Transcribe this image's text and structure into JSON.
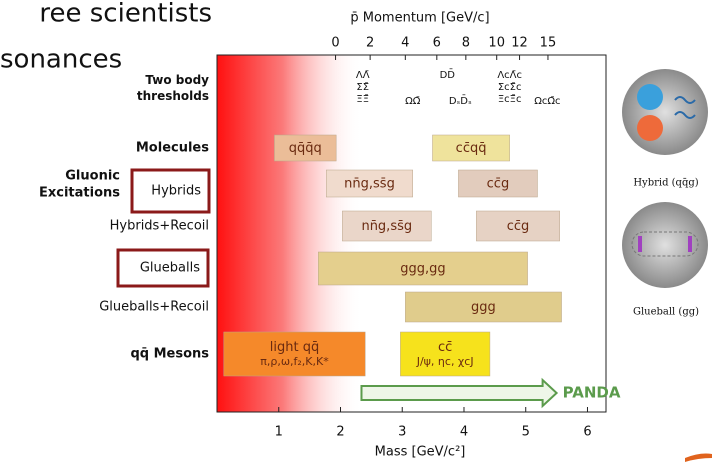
{
  "slide": {
    "heading_top": "ree scientists",
    "heading": "sonances",
    "images": [
      {
        "caption": "Hybrid (qq̄g)"
      },
      {
        "caption": "Glueball (gg)"
      }
    ]
  },
  "chart_data": {
    "type": "range",
    "x_label": "Mass [GeV/c²]",
    "x2_label": "p̄ Momentum [GeV/c]",
    "xlim": [
      0,
      6.3
    ],
    "xticks": [
      1,
      2,
      3,
      4,
      5,
      6
    ],
    "x2ticks": [
      {
        "value": 1.92,
        "label": "0"
      },
      {
        "value": 2.48,
        "label": "2"
      },
      {
        "value": 3.05,
        "label": "4"
      },
      {
        "value": 3.56,
        "label": "6"
      },
      {
        "value": 4.03,
        "label": "8"
      },
      {
        "value": 4.53,
        "label": "10"
      },
      {
        "value": 4.9,
        "label": "12"
      },
      {
        "value": 5.36,
        "label": "15"
      }
    ],
    "thresholds": {
      "label": "Two body thresholds",
      "items": [
        {
          "lines": [
            "ΛΛ̄",
            "ΣΣ̄",
            "ΞΞ̄"
          ],
          "mass": 2.36
        },
        {
          "lines": [
            "ΩΩ̄"
          ],
          "mass": 3.17
        },
        {
          "lines": [
            "DD̄"
          ],
          "mass": 3.73
        },
        {
          "lines": [
            "DₛD̄ₛ"
          ],
          "mass": 3.94
        },
        {
          "lines": [
            "ΛcΛ̄c",
            "ΣcΣ̄c",
            "ΞcΞ̄c"
          ],
          "mass": 4.74
        },
        {
          "lines": [
            "ΩcΩ̄c"
          ],
          "mass": 5.35
        }
      ]
    },
    "rows": [
      {
        "label": "Molecules",
        "bars": [
          {
            "lines": [
              "qq̄q̄q"
            ],
            "range": [
              0.93,
              1.93
            ],
            "color": "#ebbd98"
          },
          {
            "lines": [
              "cc̄qq̄"
            ],
            "range": [
              3.49,
              4.74
            ],
            "color": "#efe39c"
          }
        ]
      },
      {
        "label": "Gluonic Excitations",
        "tag": "Hybrids",
        "bars": [
          {
            "lines": [
              "nn̄g,ss̄g"
            ],
            "range": [
              1.77,
              3.17
            ],
            "color": "#f0dbcd"
          },
          {
            "lines": [
              "cc̄g"
            ],
            "range": [
              3.91,
              5.19
            ],
            "color": "#e2ccbd"
          }
        ]
      },
      {
        "label": "Hybrids+Recoil",
        "bars": [
          {
            "lines": [
              "nn̄g,ss̄g"
            ],
            "range": [
              2.03,
              3.47
            ],
            "color": "#ead6c9"
          },
          {
            "lines": [
              "cc̄g"
            ],
            "range": [
              4.2,
              5.55
            ],
            "color": "#e6d2c4"
          }
        ]
      },
      {
        "tag": "Glueballs",
        "bars": [
          {
            "lines": [
              "ggg,gg"
            ],
            "range": [
              1.64,
              5.03
            ],
            "color": "#e4cf8d"
          }
        ]
      },
      {
        "label": "Glueballs+Recoil",
        "bars": [
          {
            "lines": [
              "ggg"
            ],
            "range": [
              3.05,
              5.58
            ],
            "color": "#e0cc8c"
          }
        ]
      },
      {
        "label": "qq̄ Mesons",
        "bars": [
          {
            "lines": [
              "light qq̄",
              "π,ρ,ω,f₂,K,K*"
            ],
            "range": [
              0.11,
              2.4
            ],
            "color": "#f5892a"
          },
          {
            "lines": [
              "cc̄",
              "J/ψ, ηc, χcJ"
            ],
            "range": [
              2.97,
              4.42
            ],
            "color": "#f6e21c"
          }
        ]
      }
    ],
    "panda": {
      "label": "PANDA",
      "range": [
        2.34,
        5.5
      ],
      "color": "#5b9b4c"
    }
  }
}
